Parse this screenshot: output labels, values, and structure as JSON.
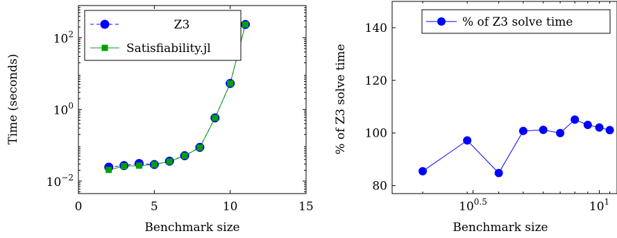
{
  "chart_data": [
    {
      "type": "line",
      "xlabel": "Benchmark size",
      "ylabel": "Time (seconds)",
      "xlim": [
        0,
        15
      ],
      "ylim_log10": [
        -2.35,
        2.9
      ],
      "yscale": "log",
      "x_ticks": [
        "0",
        "5",
        "10",
        "15"
      ],
      "y_ticks": [
        {
          "base": "10",
          "exp": "−2"
        },
        {
          "base": "10",
          "exp": "0"
        },
        {
          "base": "10",
          "exp": "2"
        }
      ],
      "legend_position": "top-right",
      "grid": false,
      "series": [
        {
          "name": "Z3",
          "color": "#0000ff",
          "marker": "circle",
          "dash": true,
          "x": [
            2,
            3,
            4,
            5,
            6,
            7,
            8,
            9,
            10,
            11
          ],
          "y": [
            0.0245,
            0.027,
            0.031,
            0.029,
            0.036,
            0.051,
            0.087,
            0.58,
            5.3,
            235
          ]
        },
        {
          "name": "Satisfiability.jl",
          "color": "#00a000",
          "marker": "square",
          "dash": false,
          "x": [
            2,
            3,
            4,
            5,
            6,
            7,
            8,
            9,
            10,
            11
          ],
          "y": [
            0.0205,
            0.026,
            0.027,
            0.029,
            0.035,
            0.051,
            0.086,
            0.58,
            5.3,
            235
          ]
        }
      ]
    },
    {
      "type": "line",
      "xlabel": "Benchmark size",
      "ylabel": "% of Z3 solve time",
      "xscale": "log",
      "xlim_log10": [
        0.18,
        1.07
      ],
      "ylim": [
        77,
        150
      ],
      "x_ticks": [
        {
          "base": "10",
          "exp": "0.5"
        },
        {
          "base": "10",
          "exp": "1"
        }
      ],
      "y_ticks": [
        "80",
        "100",
        "120",
        "140"
      ],
      "legend_position": "top-right",
      "grid": false,
      "series": [
        {
          "name": "% of Z3 solve time",
          "color": "#0000ff",
          "marker": "circle",
          "x": [
            2,
            3,
            4,
            5,
            6,
            7,
            8,
            9,
            10,
            11
          ],
          "y": [
            85.5,
            97.2,
            84.8,
            100.8,
            101.2,
            100.0,
            105.1,
            103.1,
            102.1,
            101.1
          ]
        }
      ]
    }
  ]
}
